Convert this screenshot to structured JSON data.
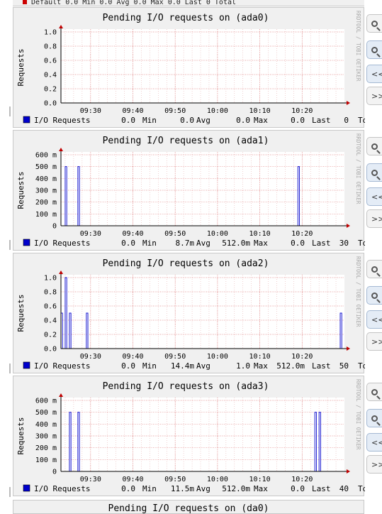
{
  "top_strip": {
    "text": "Default  0.0 Min  0.0 Avg  0.0 Max  0.0 Last  0 Total"
  },
  "chart_data": [
    {
      "type": "bar",
      "title": "Pending I/O requests on (ada0)",
      "ylabel": "Requests",
      "side_label": "RRDTOOL / TOBI OETIKER",
      "ylim": [
        0,
        1.0
      ],
      "yticks": [
        0.0,
        0.2,
        0.4,
        0.6,
        0.8,
        1.0
      ],
      "ytick_labels": [
        "0.0",
        "0.2",
        "0.4",
        "0.6",
        "0.8",
        "1.0"
      ],
      "xlim": [
        "09:23",
        "10:30"
      ],
      "xtick_labels": [
        "09:30",
        "09:40",
        "09:50",
        "10:00",
        "10:10",
        "10:20"
      ],
      "grid": true,
      "color": "#0000cc",
      "series": [
        {
          "name": "I/O Requests",
          "x": [],
          "values": []
        }
      ],
      "legend": {
        "label": "I/O Requests",
        "min": "0.0",
        "avg": "0.0",
        "max": "0.0",
        "last": "0.0",
        "total": "0"
      }
    },
    {
      "type": "bar",
      "title": "Pending I/O requests on (ada1)",
      "ylabel": "Requests",
      "side_label": "RRDTOOL / TOBI OETIKER",
      "ylim": [
        0,
        0.6
      ],
      "yticks": [
        0,
        0.1,
        0.2,
        0.3,
        0.4,
        0.5,
        0.6
      ],
      "ytick_labels": [
        "0",
        "100 m",
        "200 m",
        "300 m",
        "400 m",
        "500 m",
        "600 m"
      ],
      "xlim": [
        "09:23",
        "10:30"
      ],
      "xtick_labels": [
        "09:30",
        "09:40",
        "09:50",
        "10:00",
        "10:10",
        "10:20"
      ],
      "grid": true,
      "color": "#0000cc",
      "series": [
        {
          "name": "I/O Requests",
          "x": [
            "09:24",
            "09:27",
            "10:19"
          ],
          "values": [
            0.5,
            0.5,
            0.5
          ]
        }
      ],
      "legend": {
        "label": "I/O Requests",
        "min": "0.0",
        "avg": "8.7m",
        "max": "512.0m",
        "last": "0.0",
        "total": "30"
      }
    },
    {
      "type": "bar",
      "title": "Pending I/O requests on (ada2)",
      "ylabel": "Requests",
      "side_label": "RRDTOOL / TOBI OETIKER",
      "ylim": [
        0,
        1.0
      ],
      "yticks": [
        0.0,
        0.2,
        0.4,
        0.6,
        0.8,
        1.0
      ],
      "ytick_labels": [
        "0.0",
        "0.2",
        "0.4",
        "0.6",
        "0.8",
        "1.0"
      ],
      "xlim": [
        "09:23",
        "10:30"
      ],
      "xtick_labels": [
        "09:30",
        "09:40",
        "09:50",
        "10:00",
        "10:10",
        "10:20"
      ],
      "grid": true,
      "color": "#0000cc",
      "series": [
        {
          "name": "I/O Requests",
          "x": [
            "09:23",
            "09:24",
            "09:25",
            "09:29",
            "10:29"
          ],
          "values": [
            0.5,
            1.0,
            0.5,
            0.5,
            0.5
          ]
        }
      ],
      "legend": {
        "label": "I/O Requests",
        "min": "0.0",
        "avg": "14.4m",
        "max": "1.0",
        "last": "512.0m",
        "total": "50"
      }
    },
    {
      "type": "bar",
      "title": "Pending I/O requests on (ada3)",
      "ylabel": "Requests",
      "side_label": "RRDTOOL / TOBI OETIKER",
      "ylim": [
        0,
        0.6
      ],
      "yticks": [
        0,
        0.1,
        0.2,
        0.3,
        0.4,
        0.5,
        0.6
      ],
      "ytick_labels": [
        "0",
        "100 m",
        "200 m",
        "300 m",
        "400 m",
        "500 m",
        "600 m"
      ],
      "xlim": [
        "09:23",
        "10:30"
      ],
      "xtick_labels": [
        "09:30",
        "09:40",
        "09:50",
        "10:00",
        "10:10",
        "10:20"
      ],
      "grid": true,
      "color": "#0000cc",
      "series": [
        {
          "name": "I/O Requests",
          "x": [
            "09:25",
            "09:27",
            "10:23",
            "10:24"
          ],
          "values": [
            0.5,
            0.5,
            0.5,
            0.5
          ]
        }
      ],
      "legend": {
        "label": "I/O Requests",
        "min": "0.0",
        "avg": "11.5m",
        "max": "512.0m",
        "last": "0.0",
        "total": "40"
      }
    }
  ],
  "legend_words": {
    "min": "Min",
    "avg": "Avg",
    "max": "Max",
    "last": "Last",
    "total": "To"
  },
  "next_panel": {
    "title": "Pending I/O requests on (da0)"
  },
  "zoom_buttons": {
    "zoom_in_icon": "zoom-in-icon",
    "zoom_out_icon": "zoom-out-icon",
    "prev_label": "<<",
    "next_label": ">>"
  }
}
